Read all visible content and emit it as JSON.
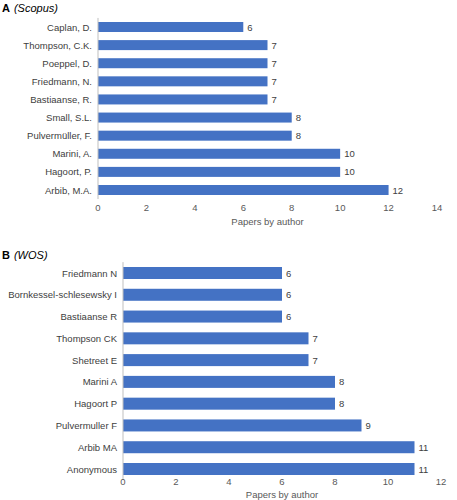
{
  "chart_data": [
    {
      "type": "bar",
      "orientation": "horizontal",
      "title": "A",
      "subtitle": "(Scopus)",
      "categories": [
        "Caplan, D.",
        "Thompson, C.K.",
        "Poeppel, D.",
        "Friedmann, N.",
        "Bastiaanse, R.",
        "Small, S.L.",
        "Pulvermüller, F.",
        "Marini, A.",
        "Hagoort, P.",
        "Arbib, M.A."
      ],
      "values": [
        6,
        7,
        7,
        7,
        7,
        8,
        8,
        10,
        10,
        12
      ],
      "color": "#4472c4",
      "xlabel": "Papers by author",
      "xlim": [
        0,
        14
      ],
      "xticks": [
        0,
        2,
        4,
        6,
        8,
        10,
        12,
        14
      ],
      "grid": false,
      "data_labels": true
    },
    {
      "type": "bar",
      "orientation": "horizontal",
      "title": "B",
      "subtitle": "(WOS)",
      "categories": [
        "Friedmann N",
        "Bornkessel-schlesewsky I",
        "Bastiaanse R",
        "Thompson CK",
        "Shetreet E",
        "Marini A",
        "Hagoort P",
        "Pulvermuller F",
        "Arbib MA",
        "Anonymous"
      ],
      "values": [
        6,
        6,
        6,
        7,
        7,
        8,
        8,
        9,
        11,
        11
      ],
      "color": "#4472c4",
      "xlabel": "Papers by author",
      "xlim": [
        0,
        12
      ],
      "xticks": [
        0,
        2,
        4,
        6,
        8,
        10,
        12
      ],
      "grid": false,
      "data_labels": true
    }
  ]
}
